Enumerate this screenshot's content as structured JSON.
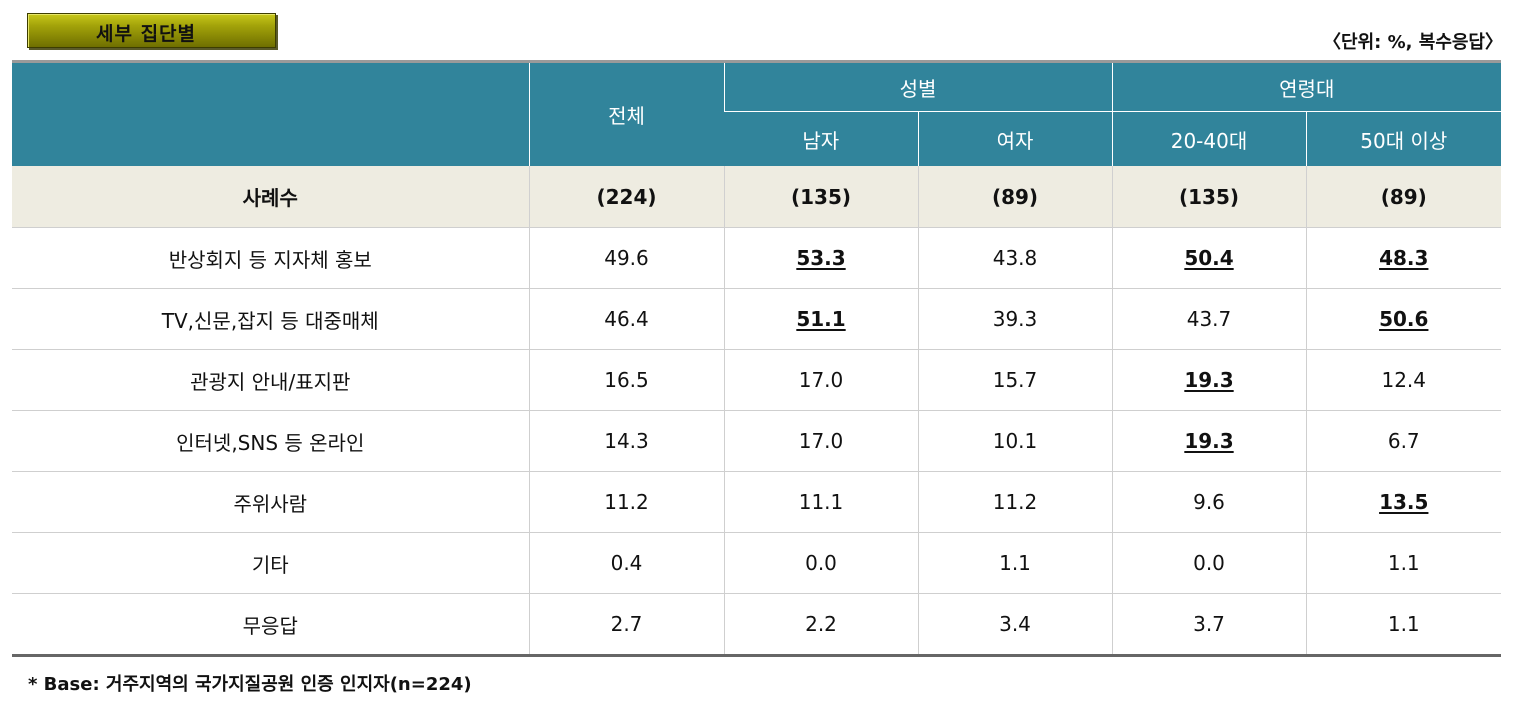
{
  "title": "세부 집단별",
  "unit_note": "〈단위: %, 복수응답〉",
  "header": {
    "total": "전체",
    "gender_group": "성별",
    "age_group": "연령대",
    "columns": [
      "남자",
      "여자",
      "20-40대",
      "50대 이상"
    ]
  },
  "cases": {
    "label": "사례수",
    "values": [
      "(224)",
      "(135)",
      "(89)",
      "(135)",
      "(89)"
    ]
  },
  "rows": [
    {
      "label": "반상회지 등 지자체 홍보",
      "values": [
        "49.6",
        "53.3",
        "43.8",
        "50.4",
        "48.3"
      ],
      "highlight": [
        false,
        true,
        false,
        true,
        true
      ]
    },
    {
      "label": "TV,신문,잡지 등 대중매체",
      "values": [
        "46.4",
        "51.1",
        "39.3",
        "43.7",
        "50.6"
      ],
      "highlight": [
        false,
        true,
        false,
        false,
        true
      ]
    },
    {
      "label": "관광지 안내/표지판",
      "values": [
        "16.5",
        "17.0",
        "15.7",
        "19.3",
        "12.4"
      ],
      "highlight": [
        false,
        false,
        false,
        true,
        false
      ]
    },
    {
      "label": "인터넷,SNS 등 온라인",
      "values": [
        "14.3",
        "17.0",
        "10.1",
        "19.3",
        "6.7"
      ],
      "highlight": [
        false,
        false,
        false,
        true,
        false
      ]
    },
    {
      "label": "주위사람",
      "values": [
        "11.2",
        "11.1",
        "11.2",
        "9.6",
        "13.5"
      ],
      "highlight": [
        false,
        false,
        false,
        false,
        true
      ]
    },
    {
      "label": "기타",
      "values": [
        "0.4",
        "0.0",
        "1.1",
        "0.0",
        "1.1"
      ],
      "highlight": [
        false,
        false,
        false,
        false,
        false
      ]
    },
    {
      "label": "무응답",
      "values": [
        "2.7",
        "2.2",
        "3.4",
        "3.7",
        "1.1"
      ],
      "highlight": [
        false,
        false,
        false,
        false,
        false
      ]
    }
  ],
  "footnote": "* Base: 거주지역의 국가지질공원 인증 인지자(n=224)"
}
